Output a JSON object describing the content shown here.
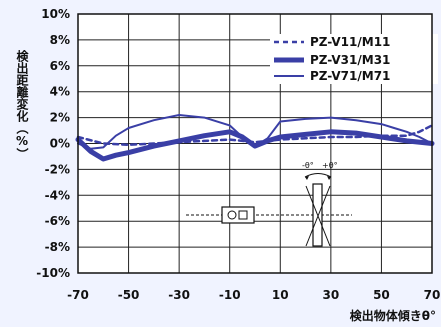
{
  "colors": {
    "background": "#f0f3ff",
    "plot_background": "#ffffff",
    "series": "#3a3fa6",
    "axis": "#111111"
  },
  "chart_data": {
    "type": "line",
    "xlabel": "検出物体傾きθ°",
    "ylabel": "検出距離変化（%）",
    "xlim": [
      -70,
      70
    ],
    "ylim": [
      -10,
      10
    ],
    "x_ticks": [
      "-70",
      "-50",
      "-30",
      "-10",
      "10",
      "30",
      "50",
      "70"
    ],
    "x_tick_values": [
      -70,
      -50,
      -30,
      -10,
      10,
      30,
      50,
      70
    ],
    "y_ticks": [
      "10%",
      "8%",
      "6%",
      "4%",
      "2%",
      "0%",
      "-2%",
      "-4%",
      "-6%",
      "-8%",
      "-10%"
    ],
    "y_tick_values": [
      10,
      8,
      6,
      4,
      2,
      0,
      -2,
      -4,
      -6,
      -8,
      -10
    ],
    "grid": true,
    "legend_position": "top-right",
    "series": [
      {
        "name": "PZ-V11/M11",
        "style": "dashed",
        "weight": "medium",
        "x": [
          -70,
          -60,
          -50,
          -40,
          -30,
          -20,
          -10,
          -5,
          0,
          5,
          10,
          20,
          30,
          40,
          50,
          60,
          65,
          70
        ],
        "y": [
          0.5,
          0.0,
          -0.1,
          0.0,
          0.1,
          0.2,
          0.3,
          0.2,
          0.1,
          0.2,
          0.3,
          0.4,
          0.5,
          0.5,
          0.6,
          0.6,
          0.9,
          1.4
        ]
      },
      {
        "name": "PZ-V31/M31",
        "style": "solid",
        "weight": "thick",
        "x": [
          -70,
          -65,
          -60,
          -55,
          -50,
          -40,
          -30,
          -20,
          -10,
          -5,
          0,
          5,
          10,
          20,
          30,
          40,
          50,
          60,
          70
        ],
        "y": [
          0.3,
          -0.6,
          -1.2,
          -0.9,
          -0.7,
          -0.2,
          0.2,
          0.6,
          0.9,
          0.5,
          -0.2,
          0.2,
          0.5,
          0.7,
          0.9,
          0.8,
          0.5,
          0.2,
          0.0
        ]
      },
      {
        "name": "PZ-V71/M71",
        "style": "solid",
        "weight": "thin",
        "x": [
          -70,
          -65,
          -60,
          -55,
          -50,
          -40,
          -30,
          -20,
          -10,
          -5,
          0,
          5,
          10,
          20,
          30,
          40,
          50,
          55,
          60,
          65,
          70
        ],
        "y": [
          0.0,
          -0.4,
          -0.3,
          0.6,
          1.2,
          1.8,
          2.2,
          2.0,
          1.4,
          0.5,
          -0.2,
          0.4,
          1.7,
          1.9,
          2.0,
          1.8,
          1.5,
          1.2,
          0.9,
          0.5,
          0.0
        ]
      }
    ],
    "annotations": {
      "theta_minus": "-θ°",
      "theta_plus": "+θ°"
    }
  }
}
